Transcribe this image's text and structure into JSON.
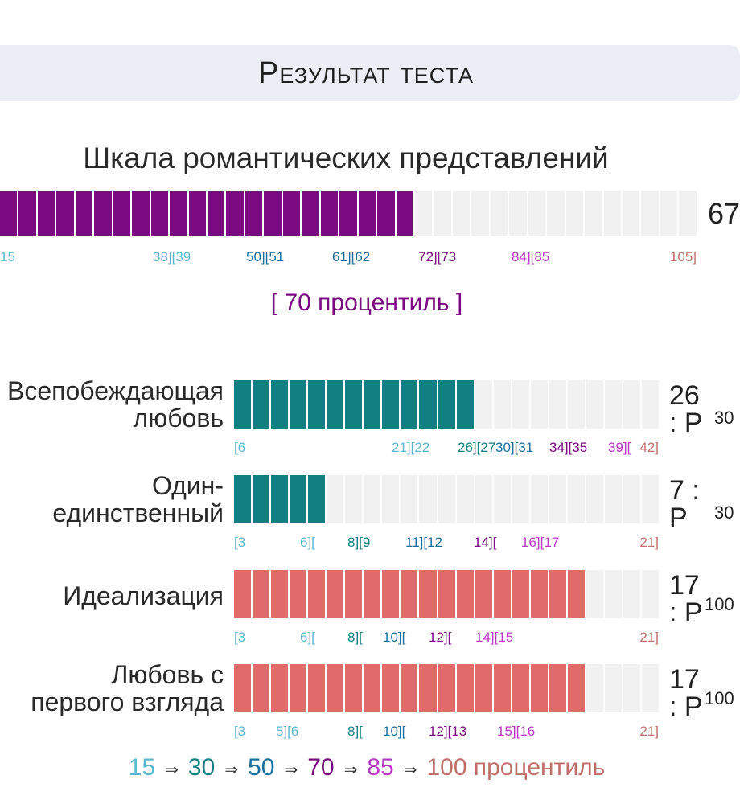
{
  "header": {
    "title": "Результат теста"
  },
  "main_scale": {
    "title": "Шкала романтических представлений",
    "score": "67",
    "percentile_label": "[ 70 процентиль ]",
    "filled_segments": 22,
    "total_segments": 37,
    "color": "#7a0a80",
    "ticks": [
      {
        "text": "15",
        "color": "#5cb8cf"
      },
      {
        "text": "38][39",
        "color": "#5cb8cf"
      },
      {
        "text": "50][51",
        "color": "#1a6f9c"
      },
      {
        "text": "61][62",
        "color": "#1a6f9c"
      },
      {
        "text": "72][73",
        "color": "#7a0a80"
      },
      {
        "text": "84][85",
        "color": "#b73ac0"
      },
      {
        "text": "105]",
        "color": "#c0706a"
      }
    ]
  },
  "subscales": [
    {
      "label_lines": [
        "Всепобеждающая",
        "любовь"
      ],
      "score_text": "26 : P",
      "p_value": "30",
      "filled_segments": 13,
      "total_segments": 23,
      "color": "#127f82",
      "ticks": [
        {
          "text": "[6",
          "color": "#5cb8cf"
        },
        {
          "text": "21][22",
          "color": "#5cb8cf"
        },
        {
          "text": "26][27",
          "color": "#127f82"
        },
        {
          "text": "30][31",
          "color": "#1a6f9c"
        },
        {
          "text": "34][35",
          "color": "#7a0a80"
        },
        {
          "text": "39][",
          "color": "#b73ac0"
        },
        {
          "text": "42]",
          "color": "#c0706a"
        }
      ]
    },
    {
      "label_lines": [
        "Один-",
        "единственный"
      ],
      "score_text": "7 : P",
      "p_value": "30",
      "filled_segments": 5,
      "total_segments": 23,
      "color": "#127f82",
      "ticks": [
        {
          "text": "[3",
          "color": "#5cb8cf"
        },
        {
          "text": "6][",
          "color": "#5cb8cf"
        },
        {
          "text": "8][9",
          "color": "#127f82"
        },
        {
          "text": "11][12",
          "color": "#1a6f9c"
        },
        {
          "text": "14][",
          "color": "#7a0a80"
        },
        {
          "text": "16][17",
          "color": "#b73ac0"
        },
        {
          "text": "21]",
          "color": "#c0706a"
        }
      ]
    },
    {
      "label_lines": [
        "Идеализация"
      ],
      "score_text": "17 : P",
      "p_value": "100",
      "filled_segments": 19,
      "total_segments": 23,
      "color": "#e06b6b",
      "ticks": [
        {
          "text": "[3",
          "color": "#5cb8cf"
        },
        {
          "text": "6][",
          "color": "#5cb8cf"
        },
        {
          "text": "8][",
          "color": "#127f82"
        },
        {
          "text": "10][",
          "color": "#1a6f9c"
        },
        {
          "text": "12][",
          "color": "#7a0a80"
        },
        {
          "text": "14][15",
          "color": "#b73ac0"
        },
        {
          "text": "21]",
          "color": "#c0706a"
        }
      ]
    },
    {
      "label_lines": [
        "Любовь с",
        "первого взгляда"
      ],
      "score_text": "17 : P",
      "p_value": "100",
      "filled_segments": 19,
      "total_segments": 23,
      "color": "#e06b6b",
      "ticks": [
        {
          "text": "[3",
          "color": "#5cb8cf"
        },
        {
          "text": "5][6",
          "color": "#5cb8cf"
        },
        {
          "text": "8][",
          "color": "#127f82"
        },
        {
          "text": "10][",
          "color": "#1a6f9c"
        },
        {
          "text": "12][13",
          "color": "#7a0a80"
        },
        {
          "text": "15][16",
          "color": "#b73ac0"
        },
        {
          "text": "21]",
          "color": "#c0706a"
        }
      ]
    }
  ],
  "legend": {
    "items": [
      {
        "text": "15",
        "color": "#5cb8cf"
      },
      {
        "text": "30",
        "color": "#127f82"
      },
      {
        "text": "50",
        "color": "#1a6f9c"
      },
      {
        "text": "70",
        "color": "#7a0a80"
      },
      {
        "text": "85",
        "color": "#b73ac0"
      },
      {
        "text": "100 процентиль",
        "color": "#c0706a"
      }
    ],
    "arrow": "⇒"
  },
  "colors": {
    "empty_segment": "#f1f1f1",
    "header_bg": "#eceef6",
    "percentile_text": "#7a0a80"
  }
}
